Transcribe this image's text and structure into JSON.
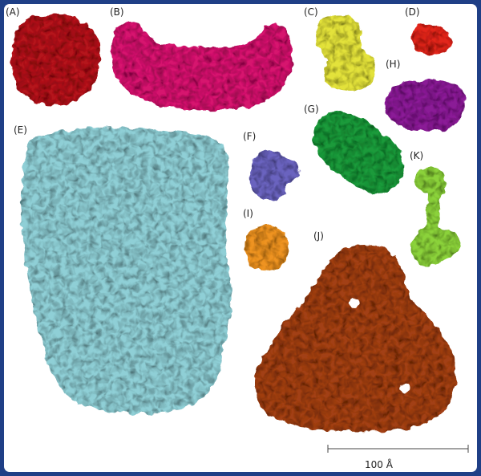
{
  "panels": [
    {
      "id": "A",
      "label": "(A)",
      "color": "#b4171a"
    },
    {
      "id": "B",
      "label": "(B)",
      "color": "#d6156e"
    },
    {
      "id": "C",
      "label": "(C)",
      "color": "#e3e23a"
    },
    {
      "id": "D",
      "label": "(D)",
      "color": "#e2261e"
    },
    {
      "id": "E",
      "label": "(E)",
      "color": "#8fcfd6"
    },
    {
      "id": "F",
      "label": "(F)",
      "color": "#6a64bf"
    },
    {
      "id": "G",
      "label": "(G)",
      "color": "#1f9a3a"
    },
    {
      "id": "H",
      "label": "(H)",
      "color": "#8a1d96"
    },
    {
      "id": "I",
      "label": "(I)",
      "color": "#ee9322"
    },
    {
      "id": "J",
      "label": "(J)",
      "color": "#a23f18"
    },
    {
      "id": "K",
      "label": "(K)",
      "color": "#8bd23a"
    }
  ],
  "scale_bar": {
    "label": "100 Å"
  }
}
